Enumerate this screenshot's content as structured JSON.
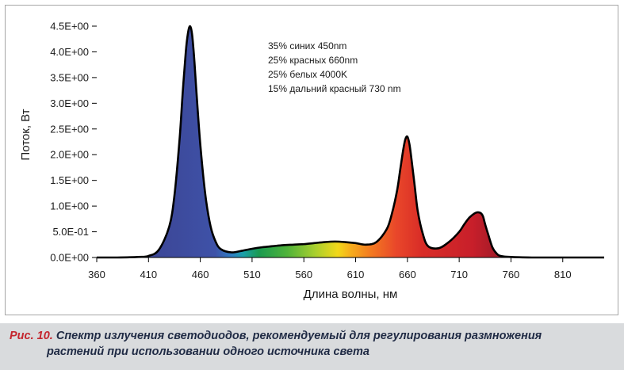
{
  "chart_data": {
    "type": "area",
    "title": "",
    "xlabel": "Длина волны, нм",
    "ylabel": "Поток, Вт",
    "xlim": [
      360,
      850
    ],
    "ylim": [
      0,
      4.5
    ],
    "x_ticks": [
      360,
      410,
      460,
      510,
      560,
      610,
      660,
      710,
      760,
      810
    ],
    "x_tick_labels": [
      "360",
      "410",
      "460",
      "510",
      "560",
      "610",
      "660",
      "710",
      "760",
      "810"
    ],
    "y_ticks": [
      0,
      0.5,
      1,
      1.5,
      2,
      2.5,
      3,
      3.5,
      4,
      4.5
    ],
    "y_tick_labels": [
      "0.0E+00",
      "5.0E-01",
      "1.0E+00",
      "1.5E+00",
      "2.0E+00",
      "2.5E+00",
      "3.0E+00",
      "3.5E+00",
      "4.0E+00",
      "4.5E+00"
    ],
    "grid": false,
    "annotations": [
      "35% синих 450nm",
      "25% красных 660nm",
      "25% белых 4000K",
      "15% дальний красный 730 nm"
    ],
    "series": [
      {
        "x": [
          360,
          380,
          400,
          410,
          420,
          430,
          435,
          440,
          443,
          446,
          448,
          450,
          452,
          454,
          456,
          460,
          465,
          470,
          475,
          480,
          490,
          500,
          510,
          520,
          530,
          540,
          550,
          560,
          570,
          580,
          590,
          600,
          610,
          620,
          630,
          640,
          645,
          650,
          653,
          656,
          658,
          660,
          662,
          664,
          667,
          670,
          675,
          680,
          690,
          700,
          710,
          715,
          720,
          725,
          728,
          731,
          733,
          735,
          738,
          742,
          746,
          750,
          760,
          780,
          800,
          820,
          850
        ],
        "y": [
          0.0,
          0.0,
          0.01,
          0.03,
          0.15,
          0.6,
          1.2,
          2.3,
          3.2,
          4.0,
          4.35,
          4.5,
          4.35,
          3.9,
          3.3,
          2.2,
          1.2,
          0.6,
          0.3,
          0.16,
          0.1,
          0.13,
          0.17,
          0.2,
          0.22,
          0.24,
          0.25,
          0.26,
          0.28,
          0.3,
          0.31,
          0.3,
          0.28,
          0.25,
          0.3,
          0.55,
          0.85,
          1.3,
          1.7,
          2.1,
          2.3,
          2.35,
          2.2,
          1.9,
          1.4,
          0.9,
          0.45,
          0.22,
          0.18,
          0.3,
          0.5,
          0.65,
          0.78,
          0.86,
          0.88,
          0.86,
          0.8,
          0.65,
          0.45,
          0.2,
          0.08,
          0.03,
          0.01,
          0.0,
          0.0,
          0.0,
          0.0
        ]
      }
    ]
  },
  "caption": {
    "figure_number": "Рис. 10.",
    "text_line1": " Спектр излучения светодиодов, рекомендуемый для регулирования размножения",
    "text_line2": "растений при использовании одного источника света"
  },
  "colors": {
    "frame_border": "#a6a6a6",
    "curve_outline": "#000000",
    "caption_band": "#d9dbdd",
    "caption_text": "#1f2a44",
    "figure_number": "#c4262e"
  }
}
